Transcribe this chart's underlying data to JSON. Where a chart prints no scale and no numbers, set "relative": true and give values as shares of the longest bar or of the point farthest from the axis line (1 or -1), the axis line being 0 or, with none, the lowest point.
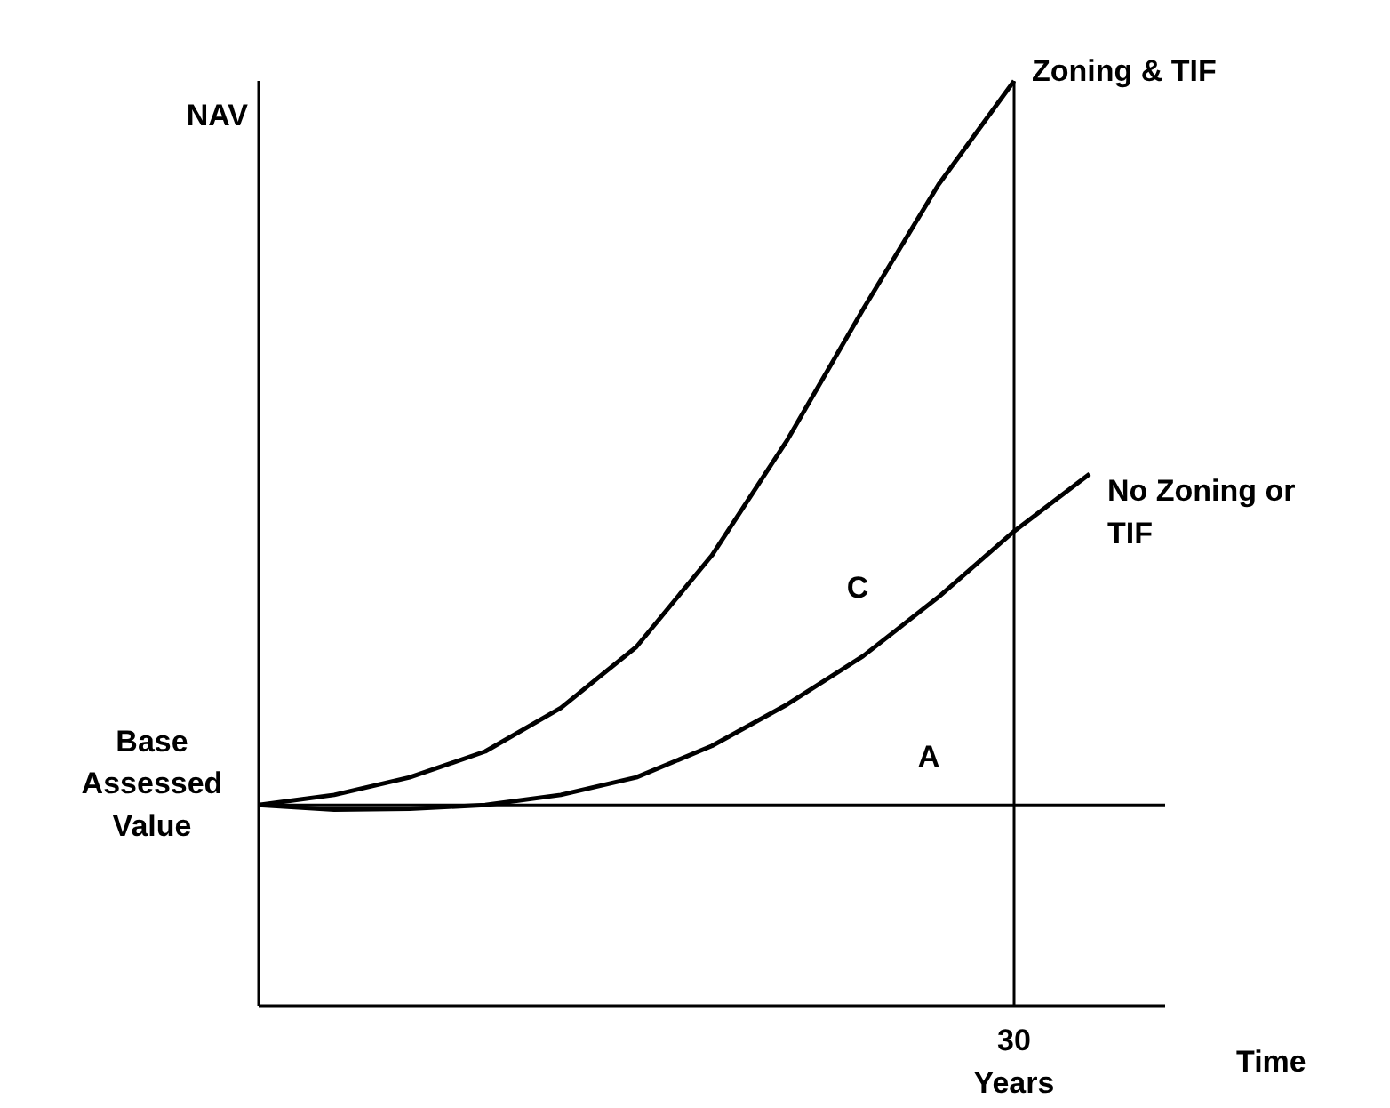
{
  "chart_data": {
    "type": "line",
    "relative": true,
    "ylabel": "NAV",
    "xlabel": "Time",
    "grid": false,
    "marker": "none",
    "line_style": "solid",
    "categories": [
      null,
      null,
      null,
      null,
      null,
      null,
      null,
      null,
      null,
      null,
      null,
      null,
      null
    ],
    "series": [
      {
        "name": "Zoning & TIF",
        "color": "#000000",
        "values": [
          0.217,
          0.228,
          0.247,
          0.275,
          0.322,
          0.388,
          0.487,
          0.612,
          0.753,
          0.888,
          1.0,
          null,
          null
        ]
      },
      {
        "name": "No Zoning or TIF",
        "color": "#000000",
        "values": [
          0.217,
          0.212,
          0.213,
          0.217,
          0.228,
          0.247,
          0.281,
          0.326,
          0.378,
          0.442,
          0.513,
          0.575,
          null
        ]
      }
    ],
    "ref_lines": [
      {
        "axis": "y",
        "value": 0.217,
        "label": "Base Assessed Value",
        "color": "#000000"
      },
      {
        "axis": "x",
        "label": "30 Years",
        "color": "#000000"
      }
    ],
    "annotations": [
      "C",
      "A"
    ]
  }
}
